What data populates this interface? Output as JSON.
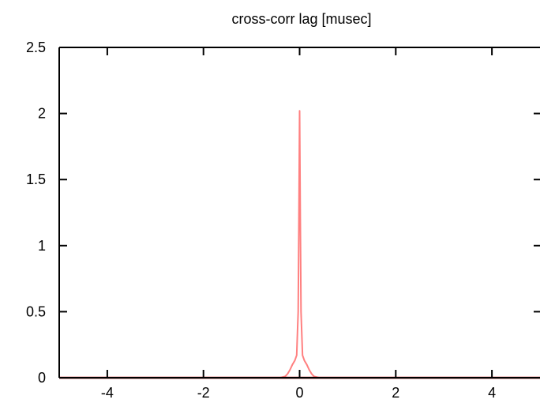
{
  "chart_data": {
    "type": "line",
    "title": "cross-corr lag [musec]",
    "xlabel": "",
    "ylabel": "",
    "xlim": [
      -5,
      5
    ],
    "ylim": [
      0,
      2.5
    ],
    "x_ticks": [
      -4,
      -2,
      0,
      2,
      4
    ],
    "x_tick_labels": [
      "-4",
      "-2",
      "0",
      "2",
      "4"
    ],
    "y_ticks": [
      0,
      0.5,
      1,
      1.5,
      2,
      2.5
    ],
    "y_tick_labels": [
      "0",
      "0.5",
      "1",
      "1.5",
      "2",
      "2.5"
    ],
    "grid": false,
    "legend": "none",
    "series": [
      {
        "color": "#ff8080",
        "x": [
          -5,
          -0.4,
          -0.3,
          -0.25,
          -0.2,
          -0.15,
          -0.1,
          -0.06,
          -0.03,
          -0.015,
          0,
          0.015,
          0.03,
          0.06,
          0.1,
          0.15,
          0.2,
          0.25,
          0.3,
          0.4,
          5
        ],
        "y": [
          0,
          0,
          0.01,
          0.03,
          0.06,
          0.1,
          0.13,
          0.17,
          0.5,
          1.2,
          2.02,
          1.2,
          0.5,
          0.17,
          0.13,
          0.1,
          0.06,
          0.03,
          0.01,
          0,
          0
        ]
      },
      {
        "color": "#b00000",
        "x": [
          -5,
          5
        ],
        "y": [
          0,
          0
        ]
      }
    ]
  }
}
